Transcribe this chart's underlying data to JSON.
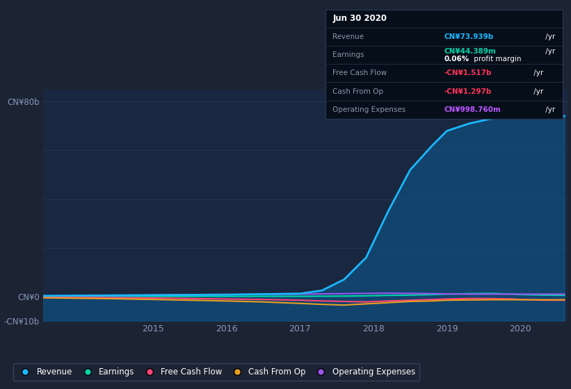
{
  "bg_color": "#1c2333",
  "plot_bg_color": "#1a2740",
  "grid_color": "#253550",
  "title_box": {
    "date": "Jun 30 2020",
    "revenue_label": "Revenue",
    "revenue_value": "CN¥73.939b",
    "revenue_suffix": " /yr",
    "revenue_color": "#1ab8ff",
    "earnings_label": "Earnings",
    "earnings_value": "CN¥44.389m",
    "earnings_suffix": " /yr",
    "earnings_color": "#00d4aa",
    "profit_margin_bold": "0.06%",
    "profit_margin_rest": " profit margin",
    "fcf_label": "Free Cash Flow",
    "fcf_value": "-CN¥1.517b",
    "fcf_suffix": " /yr",
    "fcf_color": "#ff3355",
    "cashop_label": "Cash From Op",
    "cashop_value": "-CN¥1.297b",
    "cashop_suffix": " /yr",
    "cashop_color": "#ff3355",
    "opex_label": "Operating Expenses",
    "opex_value": "CN¥998.760m",
    "opex_suffix": " /yr",
    "opex_color": "#bb55ff"
  },
  "ylim": [
    -10,
    85
  ],
  "yticks": [
    -10,
    0,
    20,
    40,
    60,
    80
  ],
  "ytick_labels": [
    "-CN¥10b",
    "CN¥0",
    "",
    "",
    "",
    "CN¥80b"
  ],
  "xtick_labels": [
    "2015",
    "2016",
    "2017",
    "2018",
    "2019",
    "2020"
  ],
  "years": [
    2013.5,
    2014.0,
    2014.5,
    2015.0,
    2015.5,
    2016.0,
    2016.5,
    2017.0,
    2017.3,
    2017.6,
    2017.9,
    2018.2,
    2018.5,
    2018.8,
    2019.0,
    2019.3,
    2019.6,
    2019.9,
    2020.0,
    2020.3,
    2020.6
  ],
  "revenue": [
    0.3,
    0.4,
    0.5,
    0.6,
    0.7,
    0.8,
    1.0,
    1.2,
    2.5,
    7.0,
    16.0,
    35.0,
    52.0,
    62.0,
    68.0,
    71.0,
    73.0,
    73.5,
    73.9,
    74.0,
    74.1
  ],
  "earnings": [
    0.1,
    0.1,
    0.1,
    0.1,
    0.1,
    0.1,
    0.1,
    0.1,
    0.15,
    0.2,
    0.3,
    0.5,
    0.6,
    0.8,
    1.0,
    1.2,
    1.3,
    1.0,
    0.8,
    0.6,
    0.5
  ],
  "free_cash_flow": [
    -0.3,
    -0.4,
    -0.5,
    -0.6,
    -0.8,
    -1.0,
    -1.2,
    -1.5,
    -1.8,
    -2.0,
    -2.2,
    -1.8,
    -1.5,
    -1.2,
    -1.0,
    -0.8,
    -0.8,
    -1.0,
    -1.2,
    -1.5,
    -1.5
  ],
  "cash_from_op": [
    -0.5,
    -0.7,
    -0.9,
    -1.2,
    -1.5,
    -1.8,
    -2.2,
    -2.8,
    -3.2,
    -3.5,
    -3.0,
    -2.5,
    -2.0,
    -1.8,
    -1.5,
    -1.4,
    -1.3,
    -1.3,
    -1.3,
    -1.3,
    -1.3
  ],
  "operating_expenses": [
    0.2,
    0.3,
    0.4,
    0.6,
    0.7,
    0.8,
    0.9,
    1.0,
    1.1,
    1.2,
    1.3,
    1.4,
    1.3,
    1.2,
    1.1,
    1.0,
    1.0,
    1.0,
    1.0,
    1.0,
    1.0
  ],
  "revenue_color": "#1ab8ff",
  "earnings_color": "#00d4aa",
  "fcf_color": "#ff4477",
  "cashop_color": "#e8a020",
  "opex_color": "#9955ee",
  "legend_items": [
    "Revenue",
    "Earnings",
    "Free Cash Flow",
    "Cash From Op",
    "Operating Expenses"
  ]
}
